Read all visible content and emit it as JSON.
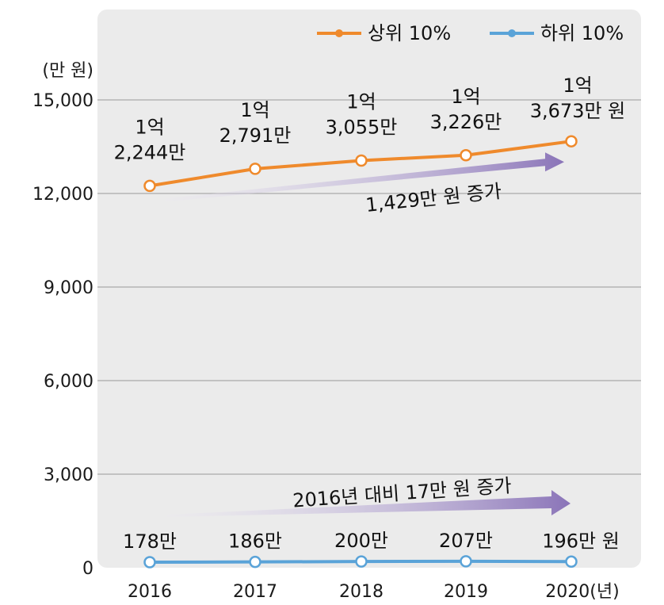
{
  "chart_data": {
    "type": "line",
    "unit": "(만 원)",
    "categories": [
      "2016",
      "2017",
      "2018",
      "2019",
      "2020(년)"
    ],
    "ylim": [
      0,
      15000
    ],
    "yticks": [
      "0",
      "3,000",
      "6,000",
      "9,000",
      "12,000",
      "15,000"
    ],
    "ytick_values": [
      0,
      3000,
      6000,
      9000,
      12000,
      15000
    ],
    "grid": true,
    "legend_position": "top-right",
    "series": [
      {
        "name": "상위 10%",
        "color": "#ef8a2c",
        "values": [
          12244,
          12791,
          13055,
          13226,
          13673
        ],
        "labels": [
          [
            "1억",
            "2,244만"
          ],
          [
            "1억",
            "2,791만"
          ],
          [
            "1억",
            "3,055만"
          ],
          [
            "1억",
            "3,226만"
          ],
          [
            "1억",
            "3,673만 원"
          ]
        ]
      },
      {
        "name": "하위 10%",
        "color": "#5aa3d8",
        "values": [
          178,
          186,
          200,
          207,
          196
        ],
        "labels": [
          [
            "178만"
          ],
          [
            "186만"
          ],
          [
            "200만"
          ],
          [
            "207만"
          ],
          [
            "196만 원"
          ]
        ]
      }
    ],
    "annotations": [
      {
        "text": "1,429만 원 증가",
        "series": "상위 10%"
      },
      {
        "text": "2016년 대비 17만 원 증가",
        "series": "하위 10%"
      }
    ],
    "colors": {
      "plot_bg": "#ebebeb",
      "grid": "#9a9a9a",
      "arrow": "#8a74b8"
    }
  }
}
